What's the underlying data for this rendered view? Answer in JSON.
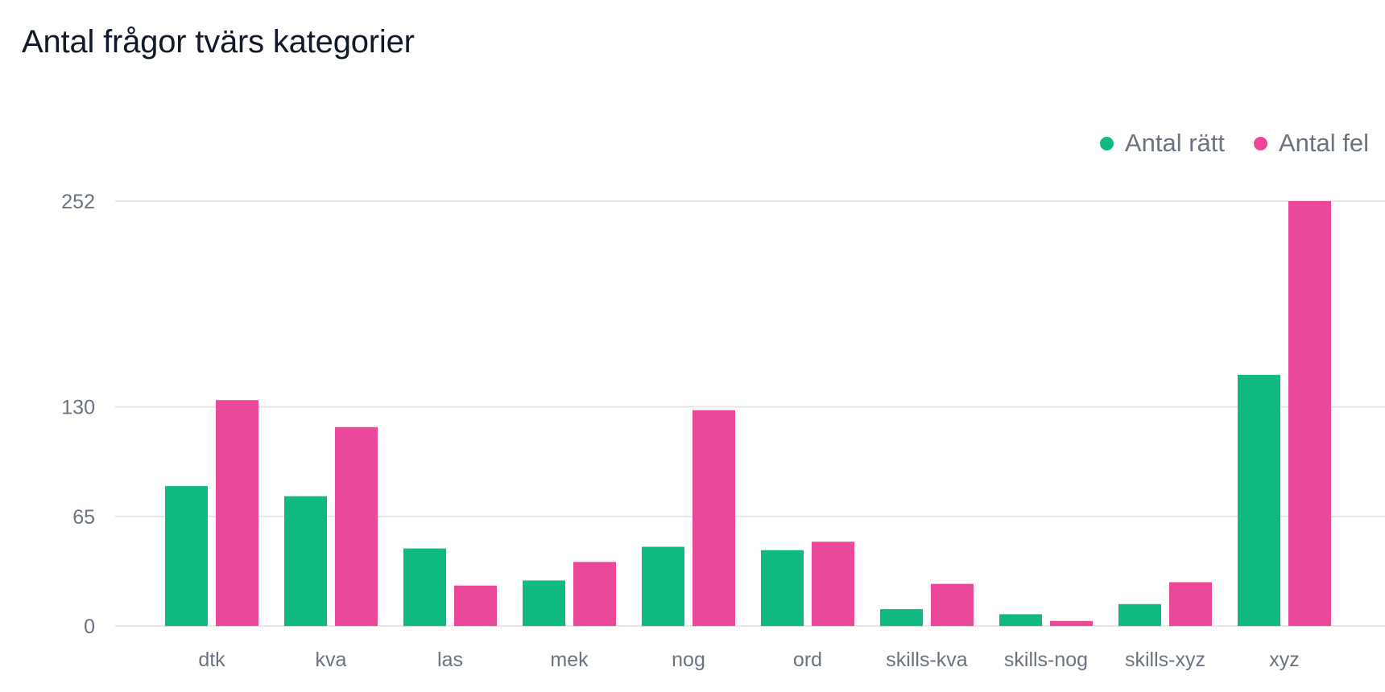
{
  "title": "Antal frågor tvärs kategorier",
  "legend": {
    "items": [
      {
        "label": "Antal rätt",
        "color": "#10b981"
      },
      {
        "label": "Antal fel",
        "color": "#ec4899"
      }
    ],
    "placement": "top-right"
  },
  "chart_data": {
    "type": "bar",
    "title": "Antal frågor tvärs kategorier",
    "xlabel": "",
    "ylabel": "",
    "categories": [
      "dtk",
      "kva",
      "las",
      "mek",
      "nog",
      "ord",
      "skills-kva",
      "skills-nog",
      "skills-xyz",
      "xyz"
    ],
    "series": [
      {
        "name": "Antal rätt",
        "color": "#10b981",
        "values": [
          83,
          77,
          46,
          27,
          47,
          45,
          10,
          7,
          13,
          149
        ]
      },
      {
        "name": "Antal fel",
        "color": "#ec4899",
        "values": [
          134,
          118,
          24,
          38,
          128,
          50,
          25,
          3,
          26,
          252
        ]
      }
    ],
    "yticks": [
      0,
      65,
      130,
      252
    ],
    "ylim": [
      0,
      252
    ],
    "grid": true
  }
}
